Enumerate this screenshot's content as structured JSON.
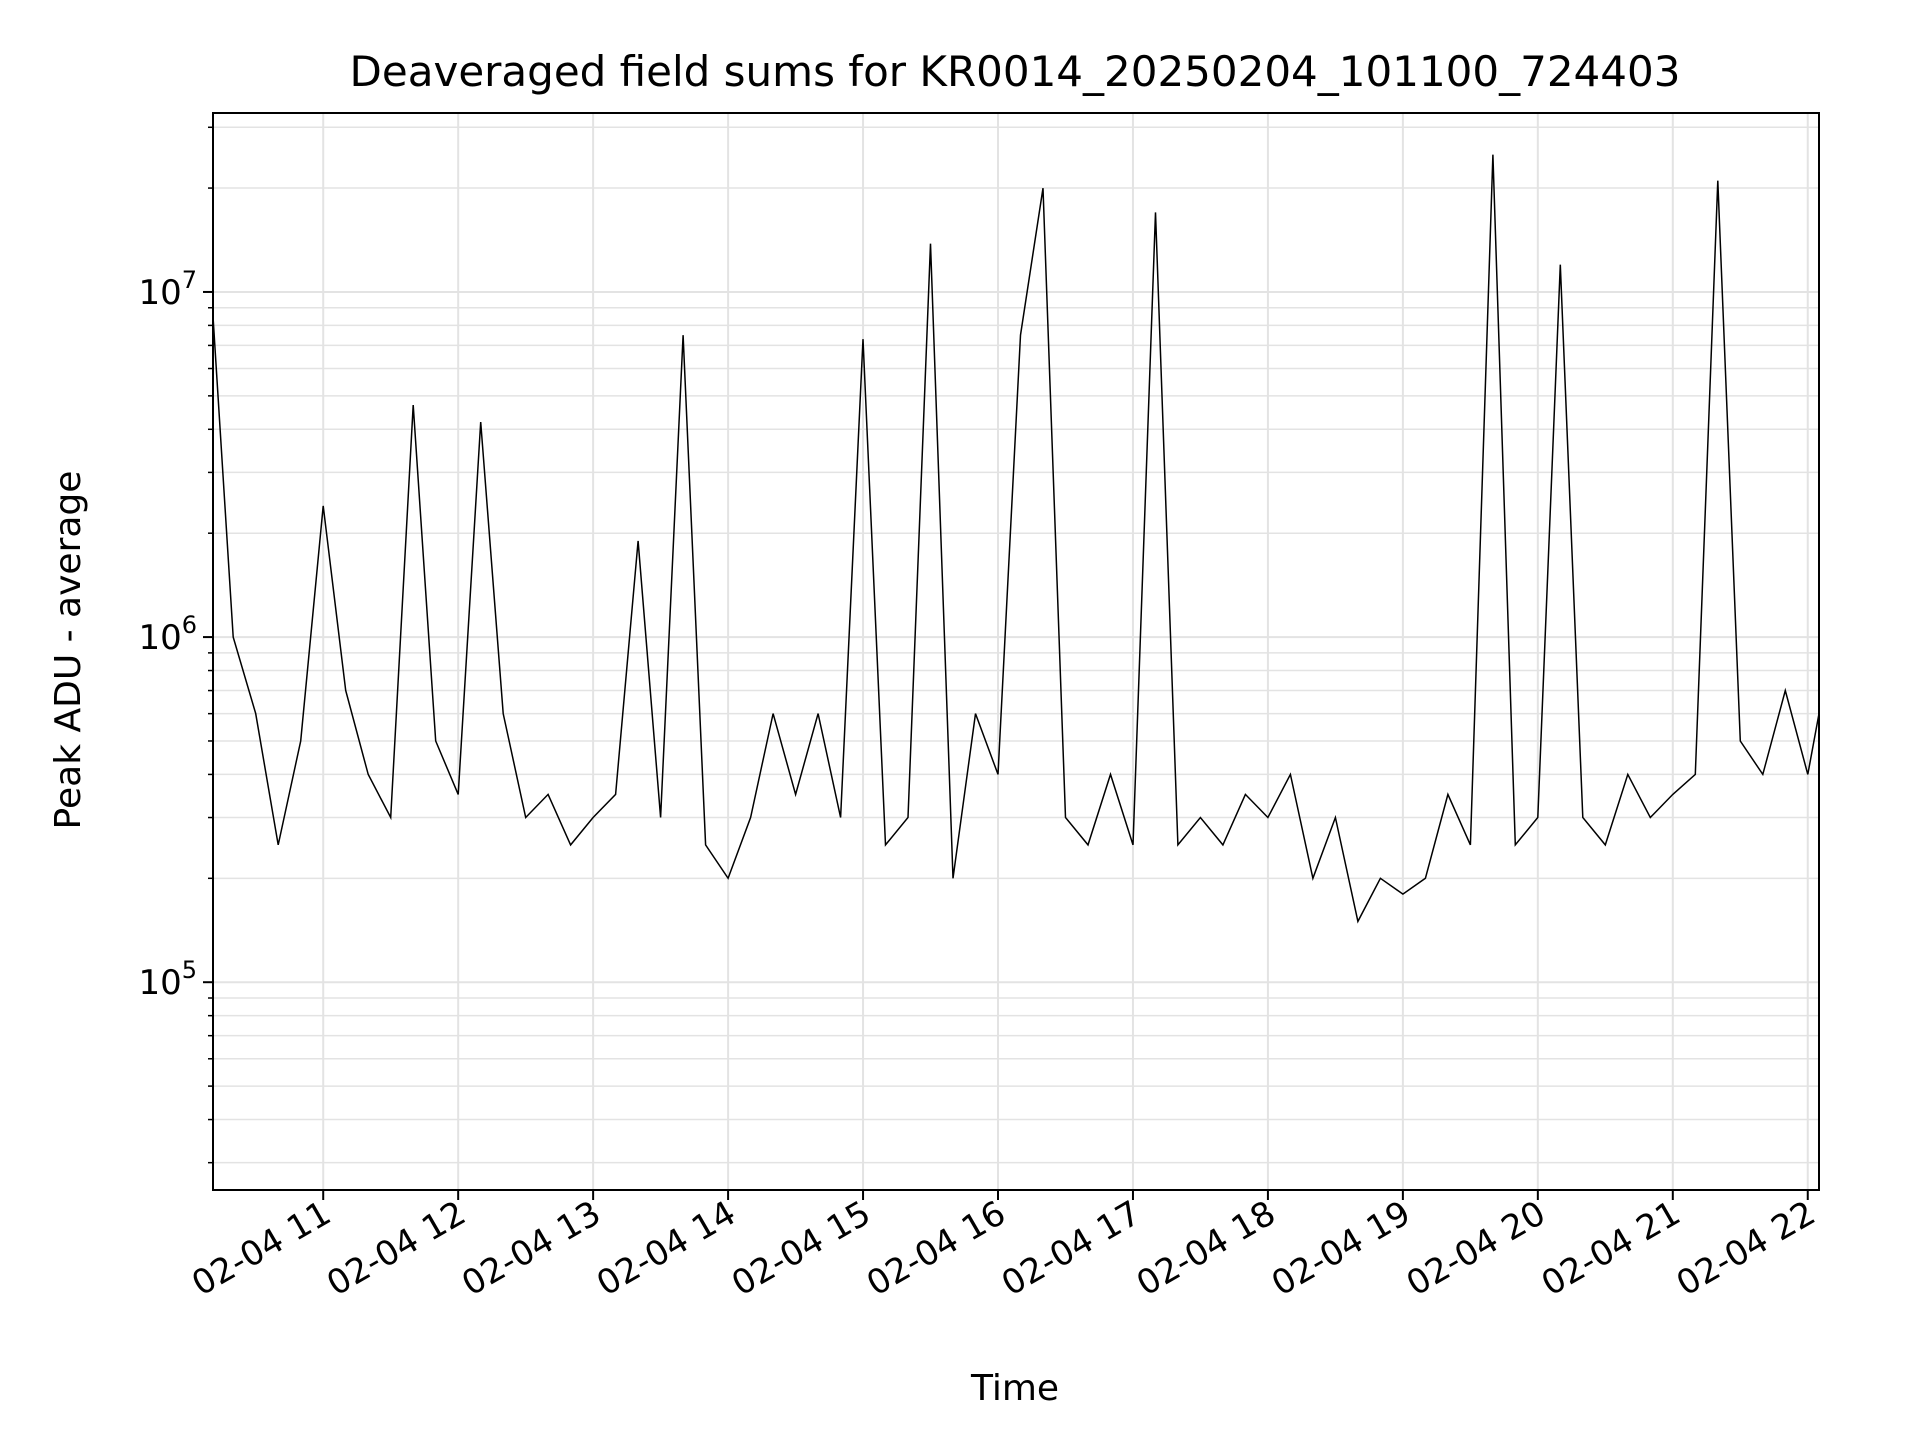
{
  "chart_data": {
    "type": "line",
    "title": "Deaveraged field sums for KR0014_20250204_101100_724403",
    "xlabel": "Time",
    "ylabel": "Peak ADU - average",
    "yscale": "log",
    "x_range": [
      "2025-02-04 10:11",
      "2025-02-04 22:05"
    ],
    "ylim": [
      25000,
      33000000
    ],
    "grid": true,
    "x_tick_labels": [
      "02-04 11",
      "02-04 12",
      "02-04 13",
      "02-04 14",
      "02-04 15",
      "02-04 16",
      "02-04 17",
      "02-04 18",
      "02-04 19",
      "02-04 20",
      "02-04 21",
      "02-04 22"
    ],
    "y_tick_labels": [
      {
        "base": "10",
        "exp": "5"
      },
      {
        "base": "10",
        "exp": "6"
      },
      {
        "base": "10",
        "exp": "7"
      }
    ],
    "series_color": "#000000",
    "series": [
      {
        "x": [
          "10:11",
          "10:20",
          "10:30",
          "10:40",
          "10:50",
          "11:00",
          "11:10",
          "11:20",
          "11:30",
          "11:40",
          "11:50",
          "12:00",
          "12:10",
          "12:20",
          "12:30",
          "12:40",
          "12:50",
          "13:00",
          "13:10",
          "13:20",
          "13:30",
          "13:40",
          "13:50",
          "14:00",
          "14:10",
          "14:20",
          "14:30",
          "14:40",
          "14:50",
          "15:00",
          "15:10",
          "15:20",
          "15:30",
          "15:40",
          "15:50",
          "16:00",
          "16:10",
          "16:20",
          "16:30",
          "16:40",
          "16:50",
          "17:00",
          "17:10",
          "17:20",
          "17:30",
          "17:40",
          "17:50",
          "18:00",
          "18:10",
          "18:20",
          "18:30",
          "18:40",
          "18:50",
          "19:00",
          "19:10",
          "19:20",
          "19:30",
          "19:40",
          "19:50",
          "20:00",
          "20:10",
          "20:20",
          "20:30",
          "20:40",
          "20:50",
          "21:00",
          "21:10",
          "21:20",
          "21:30",
          "21:40",
          "21:50",
          "22:00",
          "22:05"
        ],
        "values": [
          8500000,
          1000000,
          600000,
          250000,
          500000,
          2400000,
          700000,
          400000,
          300000,
          4700000,
          500000,
          350000,
          4200000,
          600000,
          300000,
          350000,
          250000,
          300000,
          350000,
          1900000,
          300000,
          7500000,
          250000,
          200000,
          300000,
          600000,
          350000,
          600000,
          300000,
          7300000,
          250000,
          300000,
          13800000,
          200000,
          600000,
          400000,
          7500000,
          20000000,
          300000,
          250000,
          400000,
          250000,
          17000000,
          250000,
          300000,
          250000,
          350000,
          300000,
          400000,
          200000,
          300000,
          150000,
          200000,
          180000,
          200000,
          350000,
          250000,
          25000000,
          250000,
          300000,
          12000000,
          300000,
          250000,
          400000,
          300000,
          350000,
          400000,
          21000000,
          500000,
          400000,
          700000,
          400000,
          600000
        ]
      }
    ]
  }
}
